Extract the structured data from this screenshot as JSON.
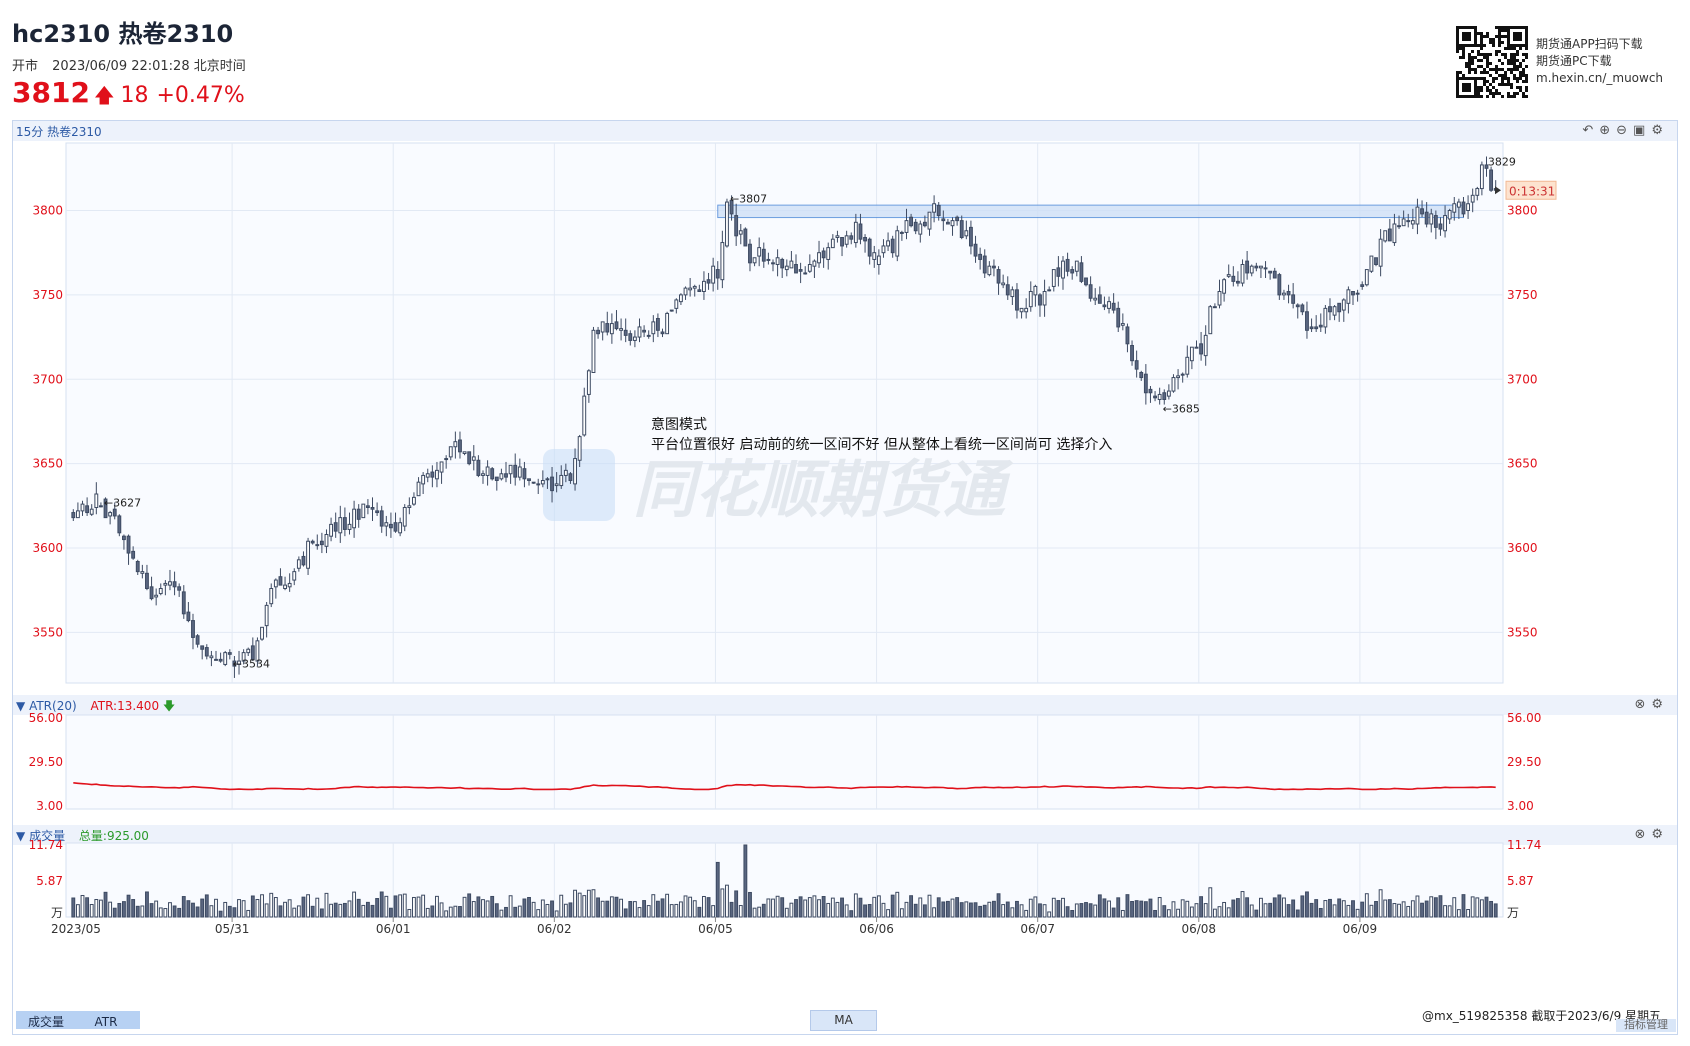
{
  "header": {
    "title": "hc2310 热卷2310",
    "market_status": "开市",
    "datetime": "2023/06/09 22:01:28 北京时间",
    "last_price": "3812",
    "change": "18",
    "change_pct": "+0.47%",
    "up_color": "#e0101a"
  },
  "download": {
    "line1": "期货通APP扫码下载",
    "line2": "期货通PC下载",
    "line3": "m.hexin.cn/_muowch"
  },
  "toolbar": {
    "label": "15分 热卷2310",
    "icons": [
      "undo-icon",
      "zoom-in-icon",
      "zoom-out-icon",
      "screenshot-icon",
      "settings-icon"
    ]
  },
  "price_axis": {
    "ticks": [
      "3800",
      "3750",
      "3700",
      "3650",
      "3600",
      "3550"
    ],
    "countdown": "0:13:31"
  },
  "annotations": {
    "high_left": "←3627",
    "low_left": "←3534",
    "high_mid": "←3807",
    "low_mid": "←3685",
    "high_right": "3829",
    "note_title": "意图模式",
    "note_body": "平台位置很好 启动前的统一区间不好 但从整体上看统一区间尚可 选择介入"
  },
  "watermark": "同花顺期货通",
  "atr_panel": {
    "name": "ATR(20)",
    "value_label": "ATR:13.400",
    "ticks": [
      "56.00",
      "29.50",
      "3.00"
    ],
    "line_color": "#e0101a"
  },
  "volume_panel": {
    "name": "成交量",
    "total_label": "总量:925.00",
    "ticks": [
      "11.74",
      "5.87",
      "万"
    ]
  },
  "date_axis": {
    "labels": [
      "2023/05",
      "05/31",
      "06/01",
      "06/02",
      "06/05",
      "06/06",
      "06/07",
      "06/08",
      "06/09"
    ]
  },
  "footer": {
    "tab_volume": "成交量",
    "tab_atr": "ATR",
    "ma_button": "MA",
    "user_info": "@mx_519825358  截取于2023/6/9 星期五",
    "manage_button": "指标管理"
  },
  "chart_data": {
    "type": "candlestick",
    "timeframe": "15分",
    "symbol": "热卷2310",
    "ylim": [
      3520,
      3840
    ],
    "atr_ylim": [
      3,
      56
    ],
    "volume_ylim": [
      0,
      11.74
    ],
    "day_boundaries": [
      "05/31",
      "06/01",
      "06/02",
      "06/05",
      "06/06",
      "06/07",
      "06/08",
      "06/09"
    ],
    "day_segments": [
      {
        "date": "2023/05 (05/30)",
        "bars": 35,
        "open": 3620,
        "waypoints": [
          [
            0,
            3620
          ],
          [
            6,
            3627
          ],
          [
            12,
            3600
          ],
          [
            18,
            3570
          ],
          [
            22,
            3580
          ],
          [
            26,
            3545
          ],
          [
            30,
            3540
          ],
          [
            34,
            3534
          ]
        ]
      },
      {
        "date": "05/31",
        "bars": 35,
        "open": 3535,
        "waypoints": [
          [
            0,
            3535
          ],
          [
            4,
            3540
          ],
          [
            8,
            3575
          ],
          [
            12,
            3580
          ],
          [
            16,
            3600
          ],
          [
            22,
            3610
          ],
          [
            28,
            3625
          ],
          [
            34,
            3615
          ]
        ]
      },
      {
        "date": "06/01",
        "bars": 35,
        "open": 3615,
        "waypoints": [
          [
            0,
            3615
          ],
          [
            6,
            3640
          ],
          [
            10,
            3650
          ],
          [
            14,
            3660
          ],
          [
            18,
            3645
          ],
          [
            24,
            3645
          ],
          [
            30,
            3640
          ],
          [
            34,
            3635
          ]
        ]
      },
      {
        "date": "06/02",
        "bars": 35,
        "open": 3635,
        "waypoints": [
          [
            0,
            3635
          ],
          [
            4,
            3650
          ],
          [
            8,
            3730
          ],
          [
            12,
            3735
          ],
          [
            18,
            3725
          ],
          [
            24,
            3735
          ],
          [
            30,
            3755
          ],
          [
            34,
            3765
          ]
        ]
      },
      {
        "date": "06/05",
        "bars": 35,
        "open": 3765,
        "waypoints": [
          [
            0,
            3765
          ],
          [
            2,
            3807
          ],
          [
            6,
            3775
          ],
          [
            12,
            3770
          ],
          [
            18,
            3765
          ],
          [
            24,
            3775
          ],
          [
            30,
            3790
          ],
          [
            34,
            3770
          ]
        ]
      },
      {
        "date": "06/06",
        "bars": 35,
        "open": 3770,
        "waypoints": [
          [
            0,
            3770
          ],
          [
            6,
            3790
          ],
          [
            12,
            3800
          ],
          [
            18,
            3790
          ],
          [
            22,
            3770
          ],
          [
            26,
            3760
          ],
          [
            30,
            3745
          ],
          [
            34,
            3750
          ]
        ]
      },
      {
        "date": "06/07",
        "bars": 35,
        "open": 3750,
        "waypoints": [
          [
            0,
            3750
          ],
          [
            4,
            3765
          ],
          [
            8,
            3765
          ],
          [
            12,
            3750
          ],
          [
            18,
            3730
          ],
          [
            22,
            3700
          ],
          [
            26,
            3690
          ],
          [
            30,
            3700
          ],
          [
            34,
            3720
          ]
        ]
      },
      {
        "date": "06/08",
        "bars": 35,
        "open": 3720,
        "waypoints": [
          [
            0,
            3720
          ],
          [
            4,
            3755
          ],
          [
            8,
            3760
          ],
          [
            12,
            3770
          ],
          [
            16,
            3760
          ],
          [
            20,
            3740
          ],
          [
            24,
            3730
          ],
          [
            30,
            3745
          ],
          [
            34,
            3755
          ]
        ]
      },
      {
        "date": "06/09",
        "bars": 30,
        "open": 3755,
        "waypoints": [
          [
            0,
            3755
          ],
          [
            4,
            3780
          ],
          [
            8,
            3790
          ],
          [
            12,
            3800
          ],
          [
            16,
            3790
          ],
          [
            20,
            3800
          ],
          [
            24,
            3805
          ],
          [
            26,
            3829
          ],
          [
            29,
            3812
          ]
        ]
      }
    ],
    "marked_extremes": [
      {
        "label": "3627",
        "type": "high"
      },
      {
        "label": "3534",
        "type": "low"
      },
      {
        "label": "3807",
        "type": "high"
      },
      {
        "label": "3685",
        "type": "low"
      },
      {
        "label": "3829",
        "type": "high"
      }
    ],
    "platform_zone": {
      "from": "06/05",
      "to": "06/09",
      "low": 3797,
      "high": 3802,
      "color": "#4a86d8"
    },
    "atr_series": {
      "name": "ATR(20)",
      "last": 13.4,
      "range": [
        13,
        20
      ]
    },
    "volume_max": 11.74
  }
}
